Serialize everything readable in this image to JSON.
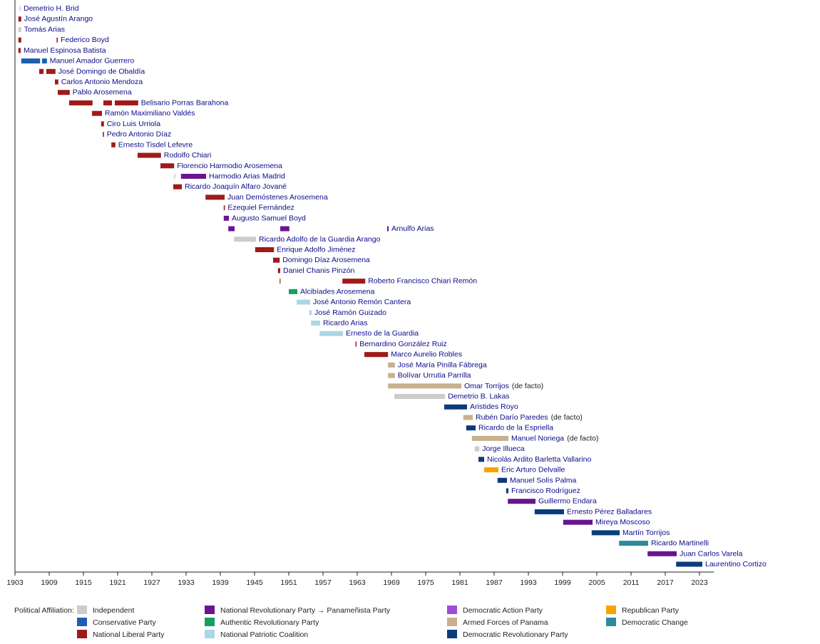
{
  "chart_data": {
    "type": "timeline",
    "xlim": [
      1903,
      2025.5
    ],
    "xticks": [
      1903,
      1909,
      1915,
      1921,
      1927,
      1933,
      1939,
      1945,
      1951,
      1957,
      1963,
      1969,
      1975,
      1981,
      1987,
      1993,
      1999,
      2005,
      2011,
      2017,
      2023
    ],
    "legend_title": "Political Affiliation:",
    "parties": [
      {
        "name": "Independent",
        "color": "#cccccc"
      },
      {
        "name": "Conservative Party",
        "color": "#1c5fb0"
      },
      {
        "name": "National Liberal Party",
        "color": "#a01a1a"
      },
      {
        "name": "National Revolutionary Party → Panameñista Party",
        "color": "#6a1491"
      },
      {
        "name": "Authentic Revolutionary Party",
        "color": "#13a060"
      },
      {
        "name": "National Patriotic Coalition",
        "color": "#a9d7e6"
      },
      {
        "name": "Democratic Action Party",
        "color": "#9a4fd6"
      },
      {
        "name": "Armed Forces of Panama",
        "color": "#c8b08e"
      },
      {
        "name": "Democratic Revolutionary Party",
        "color": "#0a3c7d"
      },
      {
        "name": "Republican Party",
        "color": "#f5a500"
      },
      {
        "name": "Democratic Change",
        "color": "#2f8a9a"
      }
    ],
    "rows": [
      {
        "name": "Demetrio H. Brid",
        "terms": [
          {
            "start": 1903.8,
            "end": 1904.0,
            "party": 0
          }
        ]
      },
      {
        "name": "José Agustín Arango",
        "terms": [
          {
            "start": 1903.6,
            "end": 1904.1,
            "party": 2
          }
        ]
      },
      {
        "name": "Tomás Arias",
        "terms": [
          {
            "start": 1903.6,
            "end": 1904.1,
            "party": 0
          }
        ]
      },
      {
        "name": "Federico Boyd",
        "terms": [
          {
            "start": 1903.6,
            "end": 1904.1,
            "party": 2
          },
          {
            "start": 1910.3,
            "end": 1910.5,
            "party": 2
          }
        ]
      },
      {
        "name": "Manuel Espinosa Batista",
        "terms": [
          {
            "start": 1903.6,
            "end": 1904.0,
            "party": 2
          }
        ]
      },
      {
        "name": "Manuel Amador Guerrero",
        "terms": [
          {
            "start": 1904.1,
            "end": 1907.4,
            "party": 1
          },
          {
            "start": 1907.75,
            "end": 1908.6,
            "party": 1
          }
        ]
      },
      {
        "name": "José Domingo de Obaldía",
        "terms": [
          {
            "start": 1907.25,
            "end": 1908.0,
            "party": 2
          },
          {
            "start": 1908.5,
            "end": 1910.1,
            "party": 2
          }
        ]
      },
      {
        "name": "Carlos Antonio Mendoza",
        "terms": [
          {
            "start": 1910.0,
            "end": 1910.6,
            "party": 2
          }
        ]
      },
      {
        "name": "Pablo Arosemena",
        "terms": [
          {
            "start": 1910.5,
            "end": 1912.6,
            "party": 2
          }
        ]
      },
      {
        "name": "Belisario Porras Barahona",
        "terms": [
          {
            "start": 1912.5,
            "end": 1916.6,
            "party": 2
          },
          {
            "start": 1918.5,
            "end": 1920.0,
            "party": 2
          },
          {
            "start": 1920.5,
            "end": 1924.6,
            "party": 2
          }
        ]
      },
      {
        "name": "Ramón Maximiliano Valdés",
        "terms": [
          {
            "start": 1916.5,
            "end": 1918.25,
            "party": 2
          }
        ]
      },
      {
        "name": "Ciro Luis Urriola",
        "terms": [
          {
            "start": 1918.1,
            "end": 1918.6,
            "party": 2
          }
        ]
      },
      {
        "name": "Pedro Antonio Díaz",
        "terms": [
          {
            "start": 1918.4,
            "end": 1918.6,
            "party": 2
          }
        ]
      },
      {
        "name": "Ernesto Tisdel Lefevre",
        "terms": [
          {
            "start": 1919.9,
            "end": 1920.6,
            "party": 2
          }
        ]
      },
      {
        "name": "Rodolfo Chiari",
        "terms": [
          {
            "start": 1924.5,
            "end": 1928.6,
            "party": 2
          }
        ]
      },
      {
        "name": "Florencio Harmodio Arosemena",
        "terms": [
          {
            "start": 1928.5,
            "end": 1930.9,
            "party": 2
          }
        ]
      },
      {
        "name": "Harmodio Arias Madrid",
        "terms": [
          {
            "start": 1930.9,
            "end": 1931.1,
            "party": 0
          },
          {
            "start": 1932.1,
            "end": 1936.5,
            "party": 3
          }
        ]
      },
      {
        "name": "Ricardo Joaquín Alfaro Jované",
        "terms": [
          {
            "start": 1930.75,
            "end": 1932.25,
            "party": 2
          }
        ]
      },
      {
        "name": "Juan Demóstenes Arosemena",
        "terms": [
          {
            "start": 1936.4,
            "end": 1939.75,
            "party": 2
          }
        ]
      },
      {
        "name": "Ezequiel Fernández",
        "terms": [
          {
            "start": 1939.6,
            "end": 1939.8,
            "party": 2
          }
        ]
      },
      {
        "name": "Augusto Samuel Boyd",
        "terms": [
          {
            "start": 1939.6,
            "end": 1940.5,
            "party": 3
          }
        ]
      },
      {
        "name": "Arnulfo Arias",
        "terms": [
          {
            "start": 1940.4,
            "end": 1941.5,
            "party": 3
          },
          {
            "start": 1949.5,
            "end": 1951.1,
            "party": 3
          },
          {
            "start": 1968.25,
            "end": 1968.5,
            "party": 3
          }
        ]
      },
      {
        "name": "Ricardo Adolfo de la Guardia Arango",
        "terms": [
          {
            "start": 1941.4,
            "end": 1945.25,
            "party": 0
          }
        ]
      },
      {
        "name": "Enrique Adolfo Jiménez",
        "terms": [
          {
            "start": 1945.1,
            "end": 1948.4,
            "party": 2
          }
        ]
      },
      {
        "name": "Domingo Díaz Arosemena",
        "terms": [
          {
            "start": 1948.25,
            "end": 1949.4,
            "party": 2
          }
        ]
      },
      {
        "name": "Daniel Chanis Pinzón",
        "terms": [
          {
            "start": 1949.1,
            "end": 1949.5,
            "party": 2
          }
        ]
      },
      {
        "name": "Roberto Francisco Chiari Remón",
        "terms": [
          {
            "start": 1949.4,
            "end": 1949.5,
            "party": 2
          },
          {
            "start": 1960.4,
            "end": 1964.4,
            "party": 2
          }
        ]
      },
      {
        "name": "Alcibíades Arosemena",
        "terms": [
          {
            "start": 1951.0,
            "end": 1952.5,
            "party": 4
          }
        ]
      },
      {
        "name": "José Antonio Remón Cantera",
        "terms": [
          {
            "start": 1952.4,
            "end": 1954.75,
            "party": 5
          }
        ]
      },
      {
        "name": "José Ramón Guizado",
        "terms": [
          {
            "start": 1954.6,
            "end": 1955.0,
            "party": 5
          }
        ]
      },
      {
        "name": "Ricardo Arias",
        "terms": [
          {
            "start": 1954.9,
            "end": 1956.5,
            "party": 5
          }
        ]
      },
      {
        "name": "Ernesto de la Guardia",
        "terms": [
          {
            "start": 1956.4,
            "end": 1960.5,
            "party": 5
          }
        ]
      },
      {
        "name": "Bernardino González Ruiz",
        "terms": [
          {
            "start": 1962.7,
            "end": 1962.9,
            "party": 2
          }
        ]
      },
      {
        "name": "Marco Aurelio Robles",
        "terms": [
          {
            "start": 1964.25,
            "end": 1968.4,
            "party": 2
          }
        ]
      },
      {
        "name": "José María Pinilla Fábrega",
        "terms": [
          {
            "start": 1968.4,
            "end": 1969.6,
            "party": 7
          }
        ]
      },
      {
        "name": "Bolívar Urrutia Parrilla",
        "terms": [
          {
            "start": 1968.4,
            "end": 1969.6,
            "party": 7
          }
        ]
      },
      {
        "name": "Omar Torrijos",
        "note": "(de facto)",
        "terms": [
          {
            "start": 1968.4,
            "end": 1981.25,
            "party": 7
          }
        ]
      },
      {
        "name": "Demetrio B. Lakas",
        "terms": [
          {
            "start": 1969.5,
            "end": 1978.4,
            "party": 0
          }
        ]
      },
      {
        "name": "Aristides Royo",
        "terms": [
          {
            "start": 1978.25,
            "end": 1982.25,
            "party": 8
          }
        ]
      },
      {
        "name": "Rubén Darío Paredes",
        "note": "(de facto)",
        "terms": [
          {
            "start": 1981.6,
            "end": 1983.25,
            "party": 7
          }
        ]
      },
      {
        "name": "Ricardo de la Espriella",
        "terms": [
          {
            "start": 1982.1,
            "end": 1983.75,
            "party": 8
          }
        ]
      },
      {
        "name": "Manuel Noriega",
        "note": "(de facto)",
        "terms": [
          {
            "start": 1983.1,
            "end": 1989.5,
            "party": 7
          }
        ]
      },
      {
        "name": "Jorge Illueca",
        "terms": [
          {
            "start": 1983.6,
            "end": 1984.4,
            "party": 0
          }
        ]
      },
      {
        "name": "Nicolás Ardito Barletta Vallarino",
        "terms": [
          {
            "start": 1984.25,
            "end": 1985.25,
            "party": 8
          }
        ]
      },
      {
        "name": "Eric Arturo Delvalle",
        "terms": [
          {
            "start": 1985.25,
            "end": 1987.75,
            "party": 9
          }
        ]
      },
      {
        "name": "Manuel Solís Palma",
        "terms": [
          {
            "start": 1987.6,
            "end": 1989.25,
            "party": 8
          }
        ]
      },
      {
        "name": "Francisco Rodríguez",
        "terms": [
          {
            "start": 1989.1,
            "end": 1989.5,
            "party": 8
          }
        ]
      },
      {
        "name": "Guillermo Endara",
        "terms": [
          {
            "start": 1989.4,
            "end": 1994.25,
            "party": 3
          }
        ]
      },
      {
        "name": "Ernesto Pérez Balladares",
        "terms": [
          {
            "start": 1994.1,
            "end": 1999.25,
            "party": 8
          }
        ]
      },
      {
        "name": "Mireya Moscoso",
        "terms": [
          {
            "start": 1999.1,
            "end": 2004.25,
            "party": 3
          }
        ]
      },
      {
        "name": "Martín Torrijos",
        "terms": [
          {
            "start": 2004.1,
            "end": 2009.0,
            "party": 8
          }
        ]
      },
      {
        "name": "Ricardo Martinelli",
        "terms": [
          {
            "start": 2008.9,
            "end": 2014.0,
            "party": 10
          }
        ]
      },
      {
        "name": "Juan Carlos Varela",
        "terms": [
          {
            "start": 2013.9,
            "end": 2019.0,
            "party": 3
          }
        ]
      },
      {
        "name": "Laurentino Cortizo",
        "terms": [
          {
            "start": 2018.9,
            "end": 2023.5,
            "party": 8
          }
        ]
      }
    ]
  }
}
